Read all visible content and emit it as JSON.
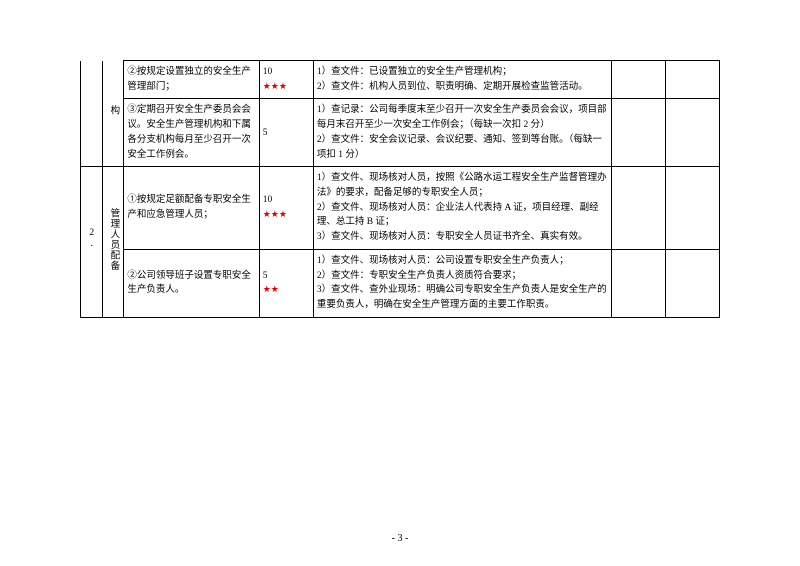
{
  "pageNumber": "- 3 -",
  "starColor": "#d00",
  "rows": [
    {
      "catIdx": "",
      "catLabel": "构",
      "item": "②按规定设置独立的安全生产管理部门；",
      "score": "10",
      "stars": "★★★",
      "check": "1）查文件：已设置独立的安全生产管理机构；\n2）查文件：机构人员到位、职责明确、定期开展检查监管活动。"
    },
    {
      "item": "③定期召开安全生产委员会会议。安全生产管理机构和下属各分支机构每月至少召开一次安全工作例会。",
      "score": "5",
      "stars": "",
      "check": "1）查记录：公司每季度末至少召开一次安全生产委员会会议，项目部每月末召开至少一次安全工作例会；（每缺一次扣 2 分）\n2）查文件：安全会议记录、会议纪要、通知、签到等台账。（每缺一项扣 1 分）"
    },
    {
      "catIdx": "2.",
      "catLabel": "管理人员配备",
      "item": "①按规定足额配备专职安全生产和应急管理人员；",
      "score": "10",
      "stars": "★★★",
      "check": "1）查文件、现场核对人员，按照《公路水运工程安全生产监督管理办法》的要求，配备足够的专职安全人员；\n2）查文件、现场核对人员：企业法人代表持 A 证，项目经理、副经理、总工持 B 证；\n3）查文件、现场核对人员：专职安全人员证书齐全、真实有效。"
    },
    {
      "item": "②公司领导班子设置专职安全生产负责人。",
      "score": "5",
      "stars": "★★",
      "check": "1）查文件、现场核对人员：公司设置专职安全生产负责人；\n2）查文件：专职安全生产负责人资质符合要求；\n3）查文件、查外业现场：明确公司专职安全生产负责人是安全生产的重要负责人，明确在安全生产管理方面的主要工作职责。"
    }
  ]
}
